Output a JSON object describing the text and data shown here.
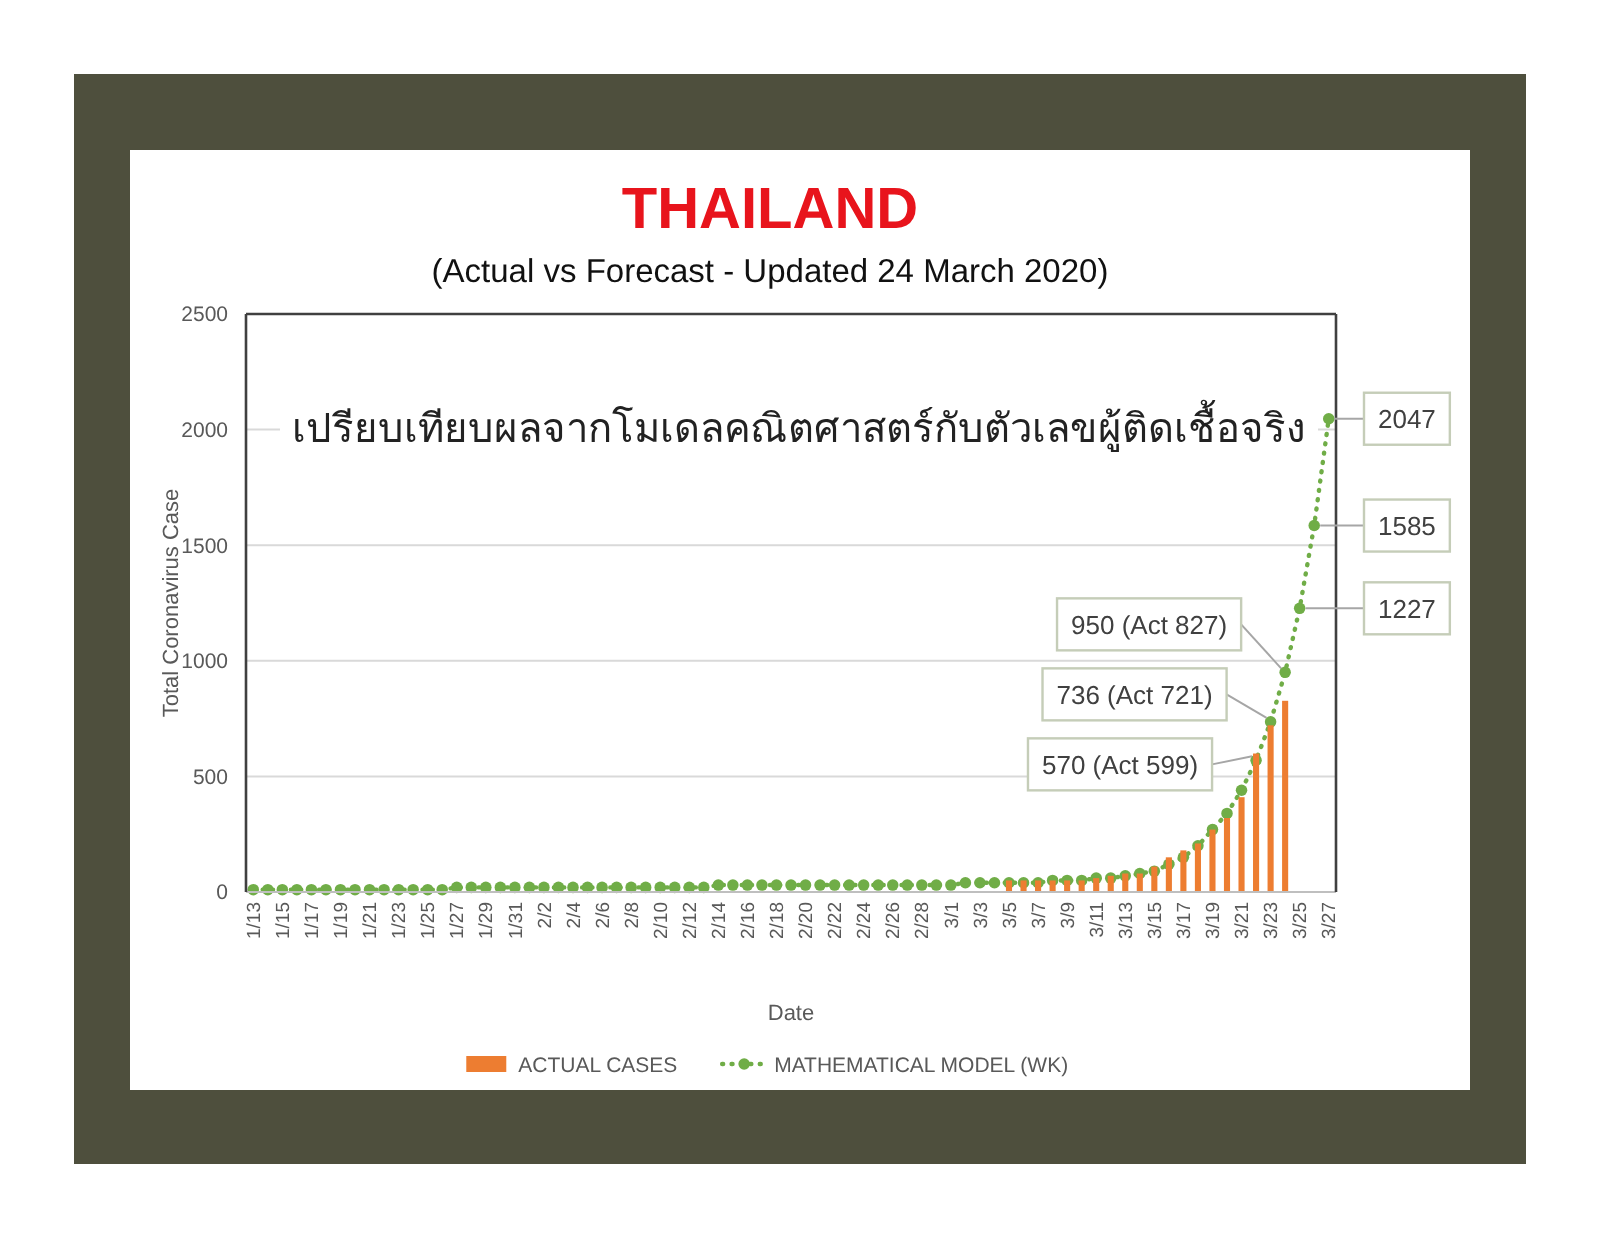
{
  "chart_data": {
    "type": "bar",
    "title": "THAILAND",
    "subtitle": "(Actual vs Forecast - Updated 24 March 2020)",
    "xlabel": "Date",
    "ylabel": "Total Coronavirus Case",
    "annotations": [
      "เปรียบเทียบผลจากโมเดลคณิตศาสตร์กับตัวเลขผู้ติดเชื้อจริง"
    ],
    "categories": [
      "1/13",
      null,
      "1/15",
      null,
      "1/17",
      null,
      "1/19",
      null,
      "1/21",
      null,
      "1/23",
      null,
      "1/25",
      null,
      "1/27",
      null,
      "1/29",
      null,
      "1/31",
      null,
      "2/2",
      null,
      "2/4",
      null,
      "2/6",
      null,
      "2/8",
      null,
      "2/10",
      null,
      "2/12",
      null,
      "2/14",
      null,
      "2/16",
      null,
      "2/18",
      null,
      "2/20",
      null,
      "2/22",
      null,
      "2/24",
      null,
      "2/26",
      null,
      "2/28",
      null,
      "3/1",
      null,
      "3/3",
      null,
      "3/5",
      null,
      "3/7",
      null,
      "3/9",
      null,
      "3/11",
      null,
      "3/13",
      null,
      "3/15",
      null,
      "3/17",
      null,
      "3/19",
      null,
      "3/21",
      null,
      "3/23",
      null,
      "3/25",
      null,
      "3/27"
    ],
    "series": [
      {
        "name": "ACTUAL CASES",
        "type": "bar",
        "color": "#ed7d31",
        "values": [
          null,
          null,
          null,
          null,
          null,
          null,
          null,
          null,
          null,
          null,
          null,
          null,
          null,
          null,
          null,
          null,
          null,
          null,
          null,
          null,
          null,
          null,
          null,
          null,
          null,
          null,
          null,
          null,
          null,
          null,
          null,
          null,
          null,
          null,
          null,
          null,
          null,
          null,
          null,
          null,
          null,
          null,
          null,
          null,
          null,
          null,
          null,
          null,
          null,
          null,
          null,
          null,
          50,
          50,
          50,
          50,
          50,
          50,
          60,
          70,
          80,
          80,
          110,
          150,
          180,
          210,
          270,
          320,
          410,
          599,
          721,
          827,
          null,
          null,
          null
        ]
      },
      {
        "name": "MATHEMATICAL MODEL (WK)",
        "type": "line",
        "color": "#70ad47",
        "values": [
          10,
          10,
          10,
          10,
          10,
          10,
          10,
          10,
          10,
          10,
          10,
          10,
          10,
          10,
          20,
          20,
          20,
          20,
          20,
          20,
          20,
          20,
          20,
          20,
          20,
          20,
          20,
          20,
          20,
          20,
          20,
          20,
          30,
          30,
          30,
          30,
          30,
          30,
          30,
          30,
          30,
          30,
          30,
          30,
          30,
          30,
          30,
          30,
          30,
          40,
          40,
          40,
          40,
          40,
          40,
          50,
          50,
          50,
          60,
          60,
          70,
          80,
          90,
          120,
          150,
          200,
          270,
          340,
          440,
          570,
          736,
          950,
          1227,
          1585,
          2047
        ],
        "value_labels": [
          null,
          null,
          null,
          null,
          null,
          null,
          null,
          null,
          null,
          null,
          null,
          null,
          null,
          null,
          null,
          null,
          null,
          null,
          null,
          null,
          null,
          null,
          null,
          null,
          null,
          null,
          null,
          null,
          null,
          null,
          null,
          null,
          null,
          null,
          null,
          null,
          null,
          null,
          null,
          null,
          null,
          null,
          null,
          null,
          null,
          null,
          null,
          null,
          null,
          null,
          null,
          null,
          null,
          null,
          null,
          null,
          null,
          null,
          null,
          null,
          null,
          null,
          null,
          null,
          null,
          null,
          null,
          null,
          null,
          "570 (Act 599)",
          "736 (Act 721)",
          "950 (Act 827)",
          "1227",
          "1585",
          "2047"
        ]
      }
    ],
    "ylim": [
      0,
      2500
    ],
    "yticks": [
      0,
      500,
      1000,
      1500,
      2000,
      2500
    ],
    "grid": "y",
    "legend": "bottom",
    "marker": "circle",
    "line_style": "dotted"
  }
}
